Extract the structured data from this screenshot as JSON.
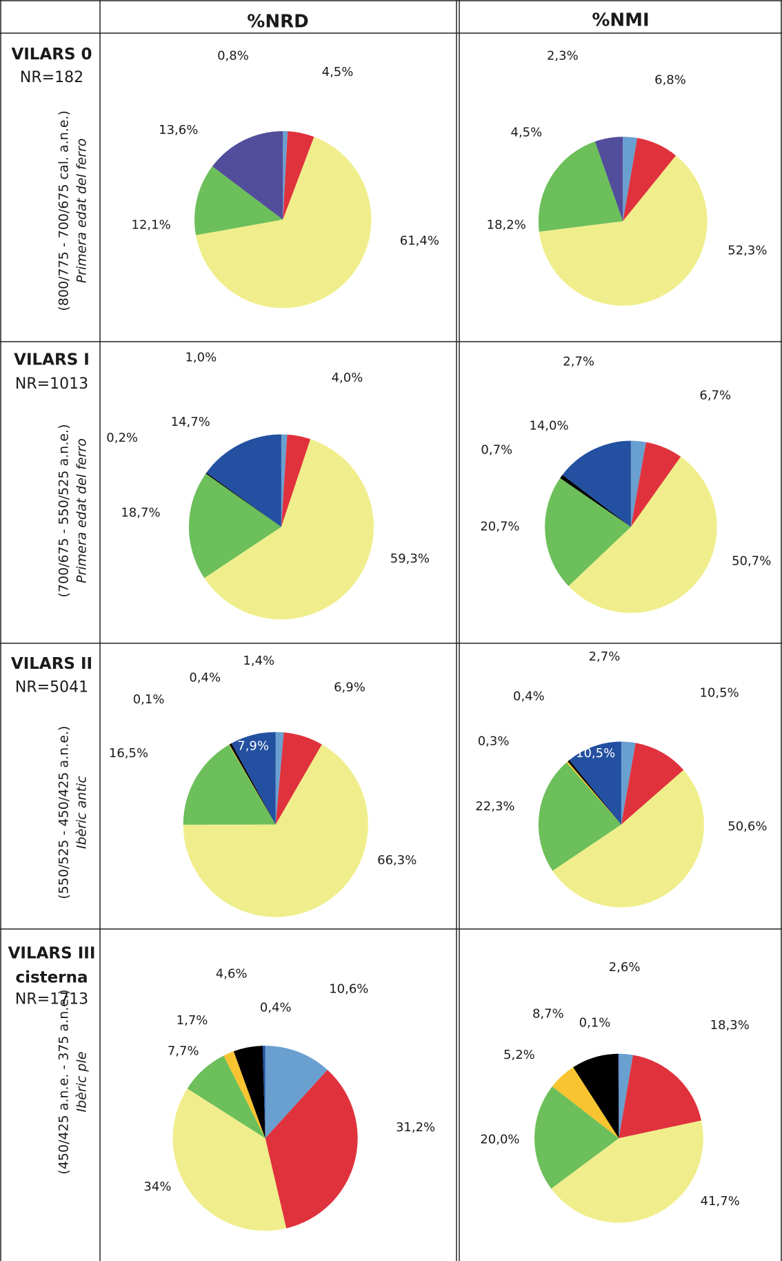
{
  "table": {
    "columns": [
      "%NRD",
      "%NMI"
    ],
    "rows": [
      {
        "site": [
          "VILARS 0"
        ],
        "nr": "NR=182",
        "dates": "(800/775 - 700/675 cal. a.n.e.)",
        "period": "Primera edat del ferro"
      },
      {
        "site": [
          "VILARS I"
        ],
        "nr": "NR=1013",
        "dates": "(700/675 - 550/525 a.n.e.)",
        "period": "Primera edat del ferro"
      },
      {
        "site": [
          "VILARS II"
        ],
        "nr": "NR=5041",
        "dates": "(550/525 - 450/425 a.n.e.)",
        "period": "Ibèric antic"
      },
      {
        "site": [
          "VILARS III",
          "cisterna"
        ],
        "nr": "NR=1713",
        "dates": "(450/425 a.n.e. - 375 a.n.e.)",
        "period": "Ibèric ple"
      }
    ]
  },
  "chart_data": [
    {
      "type": "pie",
      "values": [
        0.8,
        4.5,
        61.4,
        12.1,
        13.6
      ],
      "value_labels": [
        "0,8%",
        "4,5%",
        "61,4%",
        "12,1%",
        "13,6%"
      ],
      "colors": [
        "#6aa0d0",
        "#e0323c",
        "#f0ee8c",
        "#6cbf5a",
        "#534e9b"
      ]
    },
    {
      "type": "pie",
      "values": [
        2.3,
        6.8,
        52.3,
        18.2,
        4.5
      ],
      "value_labels": [
        "2,3%",
        "6,8%",
        "52,3%",
        "18,2%",
        "4,5%"
      ],
      "colors": [
        "#6aa0d0",
        "#e0323c",
        "#f0ee8c",
        "#6cbf5a",
        "#534e9b"
      ]
    },
    {
      "type": "pie",
      "values": [
        1.0,
        4.0,
        59.3,
        18.7,
        0.2,
        14.7
      ],
      "value_labels": [
        "1,0%",
        "4,0%",
        "59,3%",
        "18,7%",
        "0,2%",
        "14,7%"
      ],
      "colors": [
        "#6aa0d0",
        "#e0323c",
        "#f0ee8c",
        "#6cbf5a",
        "#000000",
        "#2350a0"
      ]
    },
    {
      "type": "pie",
      "values": [
        2.7,
        6.7,
        50.7,
        20.7,
        0.7,
        14.0
      ],
      "value_labels": [
        "2,7%",
        "6,7%",
        "50,7%",
        "20,7%",
        "0,7%",
        "14,0%"
      ],
      "colors": [
        "#6aa0d0",
        "#e0323c",
        "#f0ee8c",
        "#6cbf5a",
        "#000000",
        "#2350a0"
      ]
    },
    {
      "type": "pie",
      "values": [
        1.4,
        6.9,
        66.3,
        16.5,
        0.1,
        0.4,
        7.9
      ],
      "value_labels": [
        "1,4%",
        "6,9%",
        "66,3%",
        "16,5%",
        "0,1%",
        "0,4%",
        "7,9%"
      ],
      "colors": [
        "#6aa0d0",
        "#e0323c",
        "#f0ee8c",
        "#6cbf5a",
        "#f8c430",
        "#000000",
        "#2350a0"
      ]
    },
    {
      "type": "pie",
      "values": [
        2.7,
        10.5,
        50.6,
        22.3,
        0.3,
        0.4,
        10.5
      ],
      "value_labels": [
        "2,7%",
        "10,5%",
        "50,6%",
        "22,3%",
        "0,3%",
        "0,4%",
        "10,5%"
      ],
      "colors": [
        "#6aa0d0",
        "#e0323c",
        "#f0ee8c",
        "#6cbf5a",
        "#f8c430",
        "#000000",
        "#2350a0"
      ]
    },
    {
      "type": "pie",
      "values": [
        10.6,
        31.2,
        34,
        7.7,
        1.7,
        4.6,
        0.4
      ],
      "value_labels": [
        "10,6%",
        "31,2%",
        "34%",
        "7,7%",
        "1,7%",
        "4,6%",
        "0,4%"
      ],
      "colors": [
        "#6aa0d0",
        "#e0323c",
        "#f0ee8c",
        "#6cbf5a",
        "#f8c430",
        "#000000",
        "#2350a0"
      ]
    },
    {
      "type": "pie",
      "values": [
        2.6,
        18.3,
        41.7,
        20.0,
        5.2,
        8.7,
        0.1
      ],
      "value_labels": [
        "2,6%",
        "18,3%",
        "41,7%",
        "20,0%",
        "5,2%",
        "8,7%",
        "0,1%"
      ],
      "colors": [
        "#6aa0d0",
        "#e0323c",
        "#f0ee8c",
        "#6cbf5a",
        "#f8c430",
        "#000000",
        "#2350a0"
      ]
    }
  ]
}
